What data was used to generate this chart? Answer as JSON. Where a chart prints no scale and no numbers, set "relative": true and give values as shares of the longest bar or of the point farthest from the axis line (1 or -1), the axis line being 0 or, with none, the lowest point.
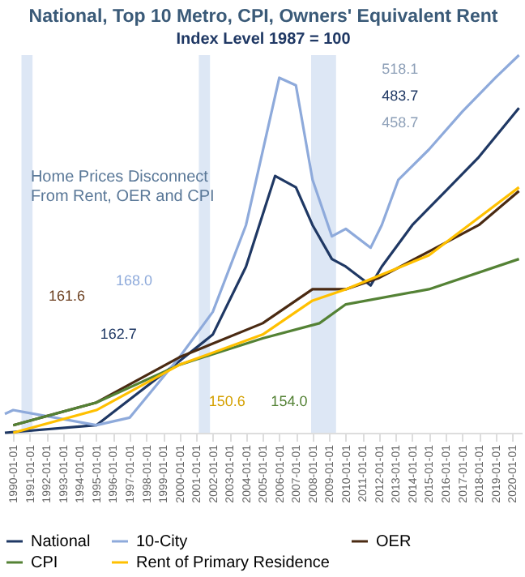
{
  "chart_data": {
    "type": "line",
    "title": "National, Top 10 Metro, CPI, Owners' Equivalent Rent",
    "subtitle": "Index Level 1987 = 100",
    "relative": true,
    "xlim": [
      "1989-07-01",
      "2020-08-01"
    ],
    "xticks": [
      "1990-01-01",
      "1991-01-01",
      "1992-01-01",
      "1993-01-01",
      "1994-01-01",
      "1995-01-01",
      "1996-01-01",
      "1997-01-01",
      "1998-01-01",
      "1999-01-01",
      "2000-01-01",
      "2001-01-01",
      "2002-01-01",
      "2003-01-01",
      "2004-01-01",
      "2005-01-01",
      "2006-01-01",
      "2007-01-01",
      "2008-01-01",
      "2009-01-01",
      "2010-01-01",
      "2011-01-01",
      "2012-01-01",
      "2013-01-01",
      "2014-01-01",
      "2015-01-01",
      "2016-01-01",
      "2017-01-01",
      "2018-01-01",
      "2019-01-01",
      "2020-01-01"
    ],
    "series": [
      {
        "name": "National",
        "color": "#1f3864",
        "x": [
          "1989-07-01",
          "1995-01-01",
          "2000-01-01",
          "2002-01-01",
          "2004-01-01",
          "2005-10-01",
          "2007-01-01",
          "2008-01-01",
          "2009-03-01",
          "2010-01-01",
          "2011-07-01",
          "2012-03-01",
          "2014-01-01",
          "2016-01-01",
          "2018-01-01",
          "2020-06-01"
        ],
        "values": [
          0,
          0.02,
          0.19,
          0.26,
          0.44,
          0.68,
          0.65,
          0.55,
          0.46,
          0.44,
          0.39,
          0.44,
          0.55,
          0.64,
          0.73,
          0.86
        ]
      },
      {
        "name": "10-City",
        "color": "#8eaadb",
        "x": [
          "1989-07-01",
          "1990-01-01",
          "1995-01-01",
          "1997-01-01",
          "2000-01-01",
          "2002-01-01",
          "2004-01-01",
          "2006-01-01",
          "2007-01-01",
          "2008-01-01",
          "2009-03-01",
          "2010-01-01",
          "2011-07-01",
          "2012-03-01",
          "2013-03-01",
          "2015-01-01",
          "2017-01-01",
          "2019-01-01",
          "2020-06-01"
        ],
        "values": [
          0.05,
          0.06,
          0.02,
          0.04,
          0.2,
          0.32,
          0.55,
          0.94,
          0.92,
          0.67,
          0.52,
          0.54,
          0.49,
          0.55,
          0.67,
          0.75,
          0.85,
          0.94,
          1
        ]
      },
      {
        "name": "OER",
        "color": "#4a2a12",
        "x": [
          "1990-01-01",
          "1995-01-01",
          "2000-01-01",
          "2005-01-01",
          "2008-01-01",
          "2010-01-01",
          "2012-01-01",
          "2015-01-01",
          "2018-01-01",
          "2020-06-01"
        ],
        "values": [
          0.02,
          0.08,
          0.2,
          0.29,
          0.38,
          0.38,
          0.41,
          0.48,
          0.55,
          0.64
        ]
      },
      {
        "name": "CPI",
        "color": "#548235",
        "x": [
          "1990-01-01",
          "1995-01-01",
          "2000-01-01",
          "2005-01-01",
          "2008-06-01",
          "2010-01-01",
          "2015-01-01",
          "2020-06-01"
        ],
        "values": [
          0.02,
          0.08,
          0.18,
          0.25,
          0.29,
          0.34,
          0.38,
          0.46
        ]
      },
      {
        "name": "Rent of Primary Residence",
        "color": "#ffc000",
        "x": [
          "1990-01-01",
          "1995-01-01",
          "2000-01-01",
          "2005-01-01",
          "2008-01-01",
          "2010-01-01",
          "2015-01-01",
          "2020-06-01"
        ],
        "values": [
          0,
          0.06,
          0.18,
          0.26,
          0.35,
          0.38,
          0.47,
          0.65
        ]
      }
    ],
    "bands": [
      {
        "axis": "x",
        "from": "1990-07-01",
        "to": "1991-03-01",
        "color": "#dde7f5"
      },
      {
        "axis": "x",
        "from": "2001-03-01",
        "to": "2001-11-01",
        "color": "#dde7f5"
      },
      {
        "axis": "x",
        "from": "2007-12-01",
        "to": "2009-06-01",
        "color": "#dde7f5"
      }
    ],
    "annotations": [
      "Home Prices Disconnect\nFrom Rent, OER and CPI",
      "168.0",
      "161.6",
      "162.7",
      "150.6",
      "154.0",
      "518.1",
      "483.7",
      "458.7"
    ],
    "legend": "bottom",
    "line_style": "solid"
  }
}
